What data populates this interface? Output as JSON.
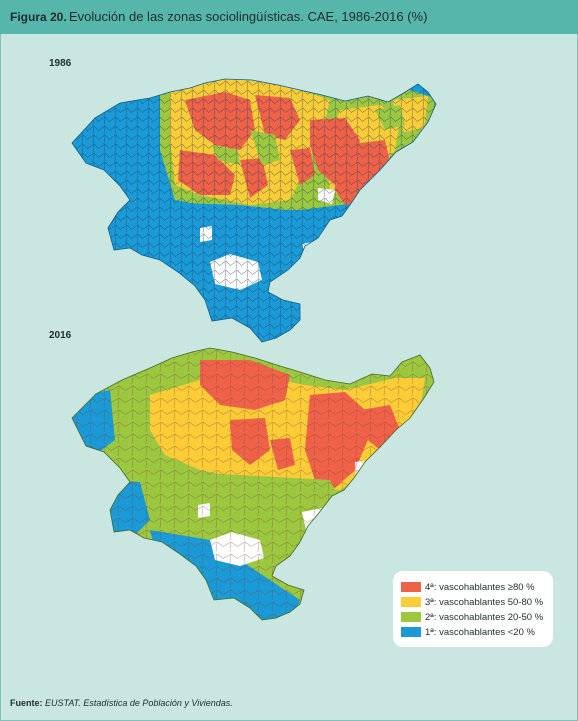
{
  "header": {
    "figure_label": "Figura 20.",
    "title": "Evolución de las zonas sociolingüísticas. CAE, 1986-2016 (%)"
  },
  "maps": [
    {
      "year": "1986"
    },
    {
      "year": "2016"
    }
  ],
  "legend": {
    "items": [
      {
        "label": "4ª: vascohablantes ≥80 %",
        "color": "#ef6248"
      },
      {
        "label": "3ª: vascohablantes 50-80 %",
        "color": "#fccd37"
      },
      {
        "label": "2ª: vascohablantes 20-50 %",
        "color": "#9cc83f"
      },
      {
        "label": "1ª: vascohablantes <20 %",
        "color": "#1a9ad7"
      }
    ]
  },
  "source": {
    "label": "Fuente:",
    "text": "EUSTAT. Estadística de Población y Viviendas."
  }
}
